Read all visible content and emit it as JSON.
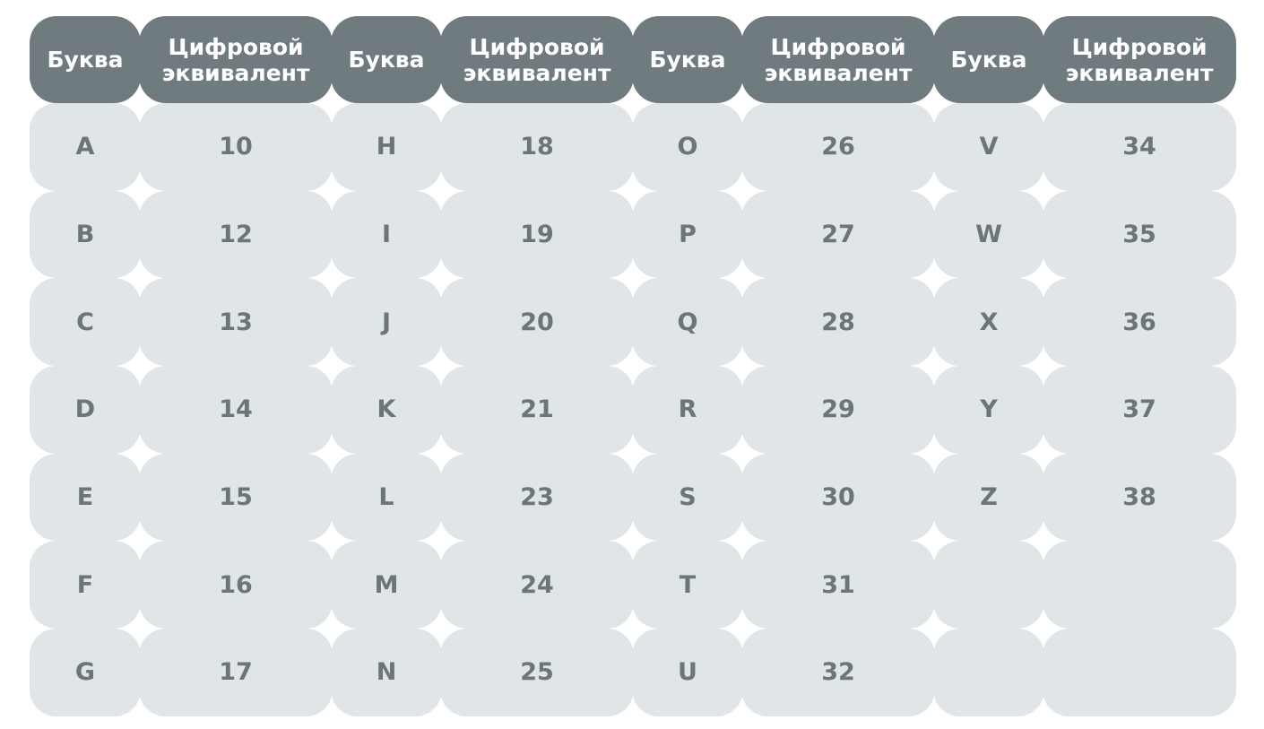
{
  "header": {
    "letter_label": "Буква",
    "code_label_line1": "Цифровой",
    "code_label_line2": "эквивалент"
  },
  "groups": [
    {
      "rows": [
        {
          "letter": "A",
          "code": "10"
        },
        {
          "letter": "B",
          "code": "12"
        },
        {
          "letter": "C",
          "code": "13"
        },
        {
          "letter": "D",
          "code": "14"
        },
        {
          "letter": "E",
          "code": "15"
        },
        {
          "letter": "F",
          "code": "16"
        },
        {
          "letter": "G",
          "code": "17"
        }
      ]
    },
    {
      "rows": [
        {
          "letter": "H",
          "code": "18"
        },
        {
          "letter": "I",
          "code": "19"
        },
        {
          "letter": "J",
          "code": "20"
        },
        {
          "letter": "K",
          "code": "21"
        },
        {
          "letter": "L",
          "code": "23"
        },
        {
          "letter": "M",
          "code": "24"
        },
        {
          "letter": "N",
          "code": "25"
        }
      ]
    },
    {
      "rows": [
        {
          "letter": "O",
          "code": "26"
        },
        {
          "letter": "P",
          "code": "27"
        },
        {
          "letter": "Q",
          "code": "28"
        },
        {
          "letter": "R",
          "code": "29"
        },
        {
          "letter": "S",
          "code": "30"
        },
        {
          "letter": "T",
          "code": "31"
        },
        {
          "letter": "U",
          "code": "32"
        }
      ]
    },
    {
      "rows": [
        {
          "letter": "V",
          "code": "34"
        },
        {
          "letter": "W",
          "code": "35"
        },
        {
          "letter": "X",
          "code": "36"
        },
        {
          "letter": "Y",
          "code": "37"
        },
        {
          "letter": "Z",
          "code": "38"
        },
        {
          "letter": "",
          "code": ""
        },
        {
          "letter": "",
          "code": ""
        }
      ]
    }
  ],
  "colors": {
    "header_bg": "#707b80",
    "header_text": "#ffffff",
    "cell_bg": "#e0e5e8",
    "cell_text": "#6c757a"
  }
}
